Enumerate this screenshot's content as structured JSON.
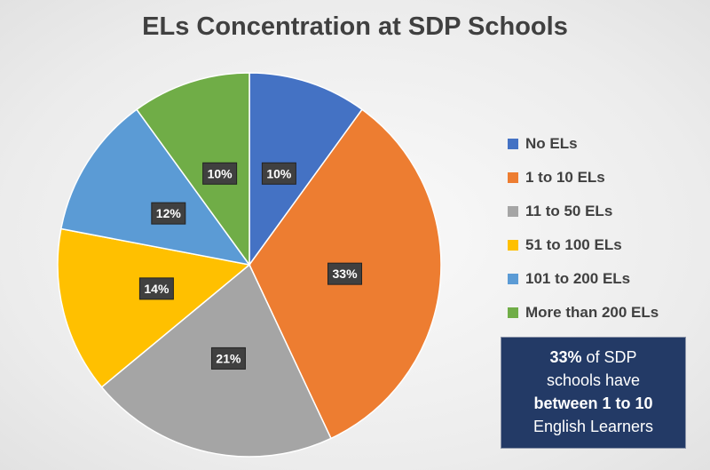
{
  "chart_data": {
    "type": "pie",
    "title": "ELs Concentration at SDP Schools",
    "categories": [
      "No ELs",
      "1 to 10 ELs",
      "11 to 50 ELs",
      "51 to 100 ELs",
      "101 to 200 ELs",
      "More than 200 ELs"
    ],
    "values": [
      10,
      33,
      21,
      14,
      12,
      10
    ],
    "data_labels": [
      "10%",
      "33%",
      "21%",
      "14%",
      "12%",
      "10%"
    ],
    "colors": [
      "#4472c4",
      "#ed7d31",
      "#a5a5a5",
      "#ffc000",
      "#5b9bd5",
      "#70ad47"
    ],
    "legend_position": "right"
  },
  "callout": {
    "pct": "33%",
    "line1_rest": " of SDP",
    "line2": "schools have",
    "line3": "between 1 to 10",
    "line4": "English Learners"
  }
}
